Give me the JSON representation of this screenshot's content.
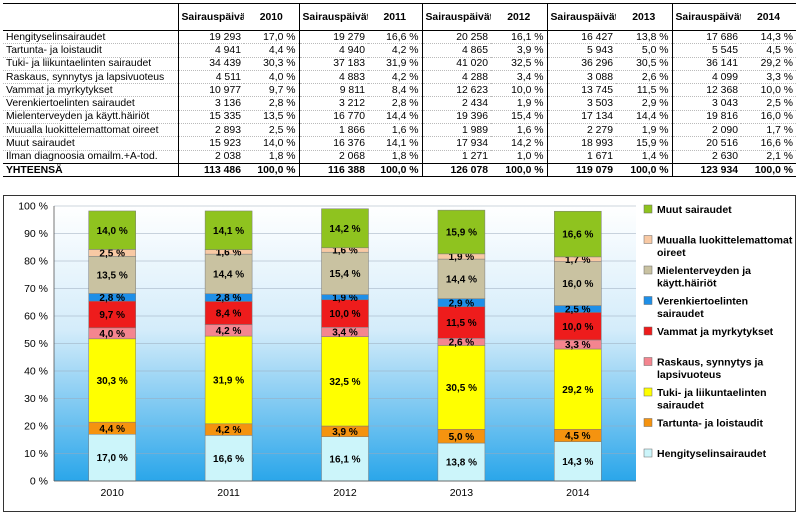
{
  "table": {
    "header_labels": [
      "Sairauspäivät",
      "2010",
      "Sairauspäivät",
      "2011",
      "Sairauspäivät",
      "2012",
      "Sairauspäivät",
      "2013",
      "Sairauspäivät",
      "2014"
    ],
    "rows": [
      {
        "label": "Hengityselinsairaudet",
        "cells": [
          "19 293",
          "17,0 %",
          "19 279",
          "16,6 %",
          "20 258",
          "16,1 %",
          "16 427",
          "13,8 %",
          "17 686",
          "14,3 %"
        ]
      },
      {
        "label": "Tartunta- ja loistaudit",
        "cells": [
          "4 941",
          "4,4 %",
          "4 940",
          "4,2 %",
          "4 865",
          "3,9 %",
          "5 943",
          "5,0 %",
          "5 545",
          "4,5 %"
        ]
      },
      {
        "label": "Tuki- ja liikuntaelinten sairaudet",
        "cells": [
          "34 439",
          "30,3 %",
          "37 183",
          "31,9 %",
          "41 020",
          "32,5 %",
          "36 296",
          "30,5 %",
          "36 141",
          "29,2 %"
        ]
      },
      {
        "label": "Raskaus, synnytys ja lapsivuoteus",
        "cells": [
          "4 511",
          "4,0 %",
          "4 883",
          "4,2 %",
          "4 288",
          "3,4 %",
          "3 088",
          "2,6 %",
          "4 099",
          "3,3 %"
        ]
      },
      {
        "label": "Vammat ja myrkytykset",
        "cells": [
          "10 977",
          "9,7 %",
          "9 811",
          "8,4 %",
          "12 623",
          "10,0 %",
          "13 745",
          "11,5 %",
          "12 368",
          "10,0 %"
        ]
      },
      {
        "label": "Verenkiertoelinten sairaudet",
        "cells": [
          "3 136",
          "2,8 %",
          "3 212",
          "2,8 %",
          "2 434",
          "1,9 %",
          "3 503",
          "2,9 %",
          "3 043",
          "2,5 %"
        ]
      },
      {
        "label": "Mielenterveyden ja käytt.häiriöt",
        "cells": [
          "15 335",
          "13,5 %",
          "16 770",
          "14,4 %",
          "19 396",
          "15,4 %",
          "17 134",
          "14,4 %",
          "19 816",
          "16,0 %"
        ]
      },
      {
        "label": "Muualla luokittelemattomat oireet",
        "cells": [
          "2 893",
          "2,5 %",
          "1 866",
          "1,6 %",
          "1 989",
          "1,6 %",
          "2 279",
          "1,9 %",
          "2 090",
          "1,7 %"
        ]
      },
      {
        "label": "Muut sairaudet",
        "cells": [
          "15 923",
          "14,0 %",
          "16 376",
          "14,1 %",
          "17 934",
          "14,2 %",
          "18 993",
          "15,9 %",
          "20 516",
          "16,6 %"
        ]
      },
      {
        "label": "Ilman diagnoosia omailm.+A-tod.",
        "cells": [
          "2 038",
          "1,8 %",
          "2 068",
          "1,8 %",
          "1 271",
          "1,0 %",
          "1 671",
          "1,4 %",
          "2 630",
          "2,1 %"
        ]
      }
    ],
    "total": {
      "label": "YHTEENSÄ",
      "cells": [
        "113 486",
        "100,0 %",
        "116 388",
        "100,0 %",
        "126 078",
        "100,0 %",
        "119 079",
        "100,0 %",
        "123 934",
        "100,0 %"
      ]
    }
  },
  "chart_data": {
    "type": "bar",
    "stacked": true,
    "categories": [
      "2010",
      "2011",
      "2012",
      "2013",
      "2014"
    ],
    "ylim": [
      0,
      100
    ],
    "y_ticks": [
      "0 %",
      "10 %",
      "20 %",
      "30 %",
      "40 %",
      "50 %",
      "60 %",
      "70 %",
      "80 %",
      "90 %",
      "100 %"
    ],
    "legend_position": "right",
    "series": [
      {
        "name": "Hengityselinsairaudet",
        "color": "#ccf5fa",
        "values": [
          17.0,
          16.6,
          16.1,
          13.8,
          14.3
        ],
        "labels": [
          "17,0 %",
          "16,6 %",
          "16,1 %",
          "13,8 %",
          "14,3 %"
        ]
      },
      {
        "name": "Tartunta- ja loistaudit",
        "color": "#f5930f",
        "values": [
          4.4,
          4.2,
          3.9,
          5.0,
          4.5
        ],
        "labels": [
          "4,4 %",
          "4,2 %",
          "3,9 %",
          "5,0 %",
          "4,5 %"
        ]
      },
      {
        "name": "Tuki- ja liikuntaelinten sairaudet",
        "color": "#ffff00",
        "values": [
          30.3,
          31.9,
          32.5,
          30.5,
          29.2
        ],
        "labels": [
          "30,3 %",
          "31,9 %",
          "32,5 %",
          "30,5 %",
          "29,2 %"
        ]
      },
      {
        "name": "Raskaus, synnytys ja lapsivuoteus",
        "color": "#f4858f",
        "values": [
          4.0,
          4.2,
          3.4,
          2.6,
          3.3
        ],
        "labels": [
          "4,0 %",
          "4,2 %",
          "3,4 %",
          "2,6 %",
          "3,3 %"
        ]
      },
      {
        "name": "Vammat ja myrkytykset",
        "color": "#ee1c1c",
        "values": [
          9.7,
          8.4,
          10.0,
          11.5,
          10.0
        ],
        "labels": [
          "9,7 %",
          "8,4 %",
          "10,0 %",
          "11,5 %",
          "10,0 %"
        ]
      },
      {
        "name": "Verenkiertoelinten sairaudet",
        "color": "#1e8fe8",
        "values": [
          2.8,
          2.8,
          1.9,
          2.9,
          2.5
        ],
        "labels": [
          "2,8 %",
          "2,8 %",
          "1,9 %",
          "2,9 %",
          "2,5 %"
        ]
      },
      {
        "name": "Mielenterveyden ja käytt.häiriöt",
        "color": "#c9c2a1",
        "values": [
          13.5,
          14.4,
          15.4,
          14.4,
          16.0
        ],
        "labels": [
          "13,5 %",
          "14,4 %",
          "15,4 %",
          "14,4 %",
          "16,0 %"
        ]
      },
      {
        "name": "Muualla luokittelemattomat oireet",
        "color": "#f8c9a4",
        "values": [
          2.5,
          1.6,
          1.6,
          1.9,
          1.7
        ],
        "labels": [
          "2,5 %",
          "1,6 %",
          "1,6 %",
          "1,9 %",
          "1,7 %"
        ]
      },
      {
        "name": "Muut sairaudet",
        "color": "#8fc31f",
        "values": [
          14.0,
          14.1,
          14.2,
          15.9,
          16.6
        ],
        "labels": [
          "14,0 %",
          "14,1 %",
          "14,2 %",
          "15,9 %",
          "16,6 %"
        ]
      }
    ],
    "legend": [
      {
        "label": "Muut sairaudet",
        "color": "#8fc31f"
      },
      {
        "label": "Muualla luokittelemattomat oireet",
        "color": "#f8c9a4"
      },
      {
        "label": "Mielenterveyden ja käytt.häiriöt",
        "color": "#c9c2a1"
      },
      {
        "label": "Verenkiertoelinten sairaudet",
        "color": "#1e8fe8"
      },
      {
        "label": "Vammat ja myrkytykset",
        "color": "#ee1c1c"
      },
      {
        "label": "Raskaus, synnytys ja lapsivuoteus",
        "color": "#f4858f"
      },
      {
        "label": "Tuki- ja liikuntaelinten sairaudet",
        "color": "#ffff00"
      },
      {
        "label": "Tartunta- ja loistaudit",
        "color": "#f5930f"
      },
      {
        "label": "Hengityselinsairaudet",
        "color": "#ccf5fa"
      }
    ]
  }
}
